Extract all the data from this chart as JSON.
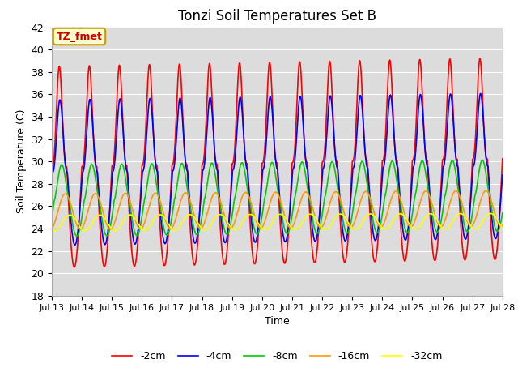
{
  "title": "Tonzi Soil Temperatures Set B",
  "xlabel": "Time",
  "ylabel": "Soil Temperature (C)",
  "ylim": [
    18,
    42
  ],
  "x_tick_labels": [
    "Jul 13",
    "Jul 14",
    "Jul 15",
    "Jul 16",
    "Jul 17",
    "Jul 18",
    "Jul 19",
    "Jul 20",
    "Jul 21",
    "Jul 22",
    "Jul 23",
    "Jul 24",
    "Jul 25",
    "Jul 26",
    "Jul 27",
    "Jul 28"
  ],
  "annotation_text": "TZ_fmet",
  "annotation_box_color": "#ffffcc",
  "annotation_border_color": "#cc9900",
  "annotation_text_color": "#cc0000",
  "plot_bg_color": "#dcdcdc",
  "fig_bg_color": "#ffffff",
  "grid_color": "#ffffff",
  "series": [
    {
      "label": "-2cm",
      "color": "#ff0000",
      "amplitude": 9.0,
      "mean": 29.5,
      "phase_shift": 0.0,
      "sharpness": 3.0,
      "trend": 0.05
    },
    {
      "label": "-4cm",
      "color": "#0000ff",
      "amplitude": 6.5,
      "mean": 29.0,
      "phase_shift": 0.02,
      "sharpness": 2.5,
      "trend": 0.04
    },
    {
      "label": "-8cm",
      "color": "#00cc00",
      "amplitude": 3.2,
      "mean": 26.5,
      "phase_shift": 0.08,
      "sharpness": 1.5,
      "trend": 0.03
    },
    {
      "label": "-16cm",
      "color": "#ff9900",
      "amplitude": 1.6,
      "mean": 25.5,
      "phase_shift": 0.2,
      "sharpness": 1.0,
      "trend": 0.02
    },
    {
      "label": "-32cm",
      "color": "#ffff00",
      "amplitude": 0.7,
      "mean": 24.5,
      "phase_shift": 0.35,
      "sharpness": 0.8,
      "trend": 0.01
    }
  ],
  "legend_ncol": 5,
  "linewidth": 1.2,
  "n_points": 2000
}
